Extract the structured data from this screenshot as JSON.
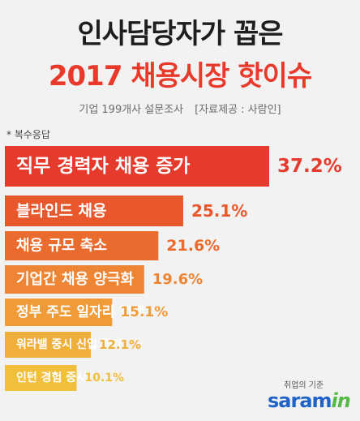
{
  "header": {
    "title_line1": "인사담당자가 꼽은",
    "title_line2": "2017 채용시장 핫이슈",
    "subtitle": "기업 199개사 설문조사",
    "source": "[자료제공 : 사람인]",
    "note": "* 복수응답"
  },
  "logo": {
    "tagline": "취업의 기준",
    "name_main": "saram",
    "name_accent": "in"
  },
  "colors": {
    "background": "#f2f2f2",
    "title_dark": "#1e1e1e",
    "title_accent": "#e8392b",
    "bar_text": "#ffffff"
  },
  "chart_data": {
    "type": "bar",
    "orientation": "horizontal",
    "categories": [
      "직무 경력자 채용 증가",
      "블라인드 채용",
      "채용 규모 축소",
      "기업간 채용 양극화",
      "정부 주도 일자리 정책",
      "워라밸 중시 신입 증가",
      "인턴 경험 중시"
    ],
    "values": [
      37.2,
      25.1,
      21.6,
      19.6,
      15.1,
      12.1,
      10.1
    ],
    "value_labels": [
      "37.2%",
      "25.1%",
      "21.6%",
      "19.6%",
      "15.1%",
      "12.1%",
      "10.1%"
    ],
    "bar_colors": [
      "#e53a2c",
      "#e8582c",
      "#ea6b2e",
      "#ed8534",
      "#ef9b38",
      "#f0ae3a",
      "#f1bf3b"
    ],
    "label_colors": [
      "#e53a2c",
      "#e8582c",
      "#ea6b2e",
      "#ed8534",
      "#ef9b38",
      "#f0ae3a",
      "#f1bf3b"
    ],
    "title": "2017 채용시장 핫이슈",
    "xlabel": "",
    "ylabel": "",
    "grid": false
  }
}
